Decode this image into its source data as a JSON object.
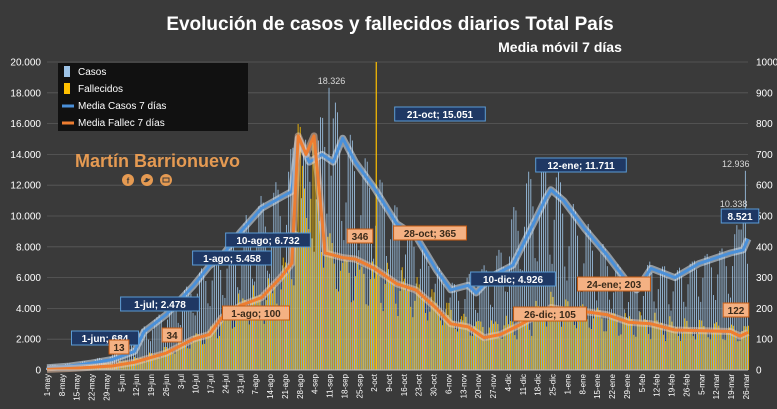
{
  "chart_data": {
    "type": "bar+line",
    "title": "Evolución  de casos  y fallecidos  diarios  Total  País",
    "subtitle": "Media  móvil  7 días",
    "author": "Martín Barrionuevo",
    "y_left": {
      "min": 0,
      "max": 20000,
      "ticks": [
        "0",
        "2.000",
        "4.000",
        "6.000",
        "8.000",
        "10.000",
        "12.000",
        "14.000",
        "16.000",
        "18.000",
        "20.000"
      ]
    },
    "y_right": {
      "min": 0,
      "max": 1000,
      "ticks": [
        "0",
        "100",
        "200",
        "300",
        "400",
        "500",
        "600",
        "700",
        "800",
        "900",
        "1000"
      ]
    },
    "x_start": "1-may",
    "x_end": "26-mar",
    "x_ticks": [
      "1-may",
      "8-may",
      "15-may",
      "22-may",
      "29-may",
      "5-jun",
      "12-jun",
      "19-jun",
      "26-jun",
      "3-jul",
      "10-jul",
      "17-jul",
      "24-jul",
      "31-jul",
      "7-ago",
      "14-ago",
      "21-ago",
      "28-ago",
      "4-sep",
      "11-sep",
      "18-sep",
      "25-sep",
      "2-oct",
      "9-oct",
      "16-oct",
      "23-oct",
      "30-oct",
      "6-nov",
      "13-nov",
      "20-nov",
      "27-nov",
      "4-dic",
      "11-dic",
      "18-dic",
      "25-dic",
      "1-ene",
      "8-ene",
      "15-ene",
      "22-ene",
      "29-ene",
      "5-feb",
      "12-feb",
      "19-feb",
      "26-feb",
      "5-mar",
      "12-mar",
      "19-mar",
      "26-mar"
    ],
    "legend": [
      {
        "label": "Casos",
        "color": "#9dc3e6",
        "kind": "bar"
      },
      {
        "label": "Fallecidos",
        "color": "#ffc000",
        "kind": "bar"
      },
      {
        "label": "Media Casos 7 días",
        "color": "#4a90d9",
        "kind": "line"
      },
      {
        "label": "Media Fallec 7 días",
        "color": "#ed7d31",
        "kind": "line"
      }
    ],
    "series": [
      {
        "name": "Media Casos 7 días",
        "axis": "left",
        "points": [
          [
            0,
            150
          ],
          [
            14,
            250
          ],
          [
            28,
            450
          ],
          [
            41,
            684
          ],
          [
            55,
            1200
          ],
          [
            61,
            2478
          ],
          [
            75,
            3600
          ],
          [
            92,
            5458
          ],
          [
            102,
            6732
          ],
          [
            110,
            7400
          ],
          [
            122,
            9000
          ],
          [
            135,
            10500
          ],
          [
            147,
            11200
          ],
          [
            154,
            11600
          ],
          [
            158,
            15051
          ],
          [
            165,
            13500
          ],
          [
            173,
            14000
          ],
          [
            180,
            13500
          ],
          [
            186,
            15051
          ],
          [
            194,
            13500
          ],
          [
            206,
            11800
          ],
          [
            220,
            9500
          ],
          [
            232,
            8700
          ],
          [
            245,
            6500
          ],
          [
            254,
            5200
          ],
          [
            265,
            5500
          ],
          [
            270,
            5000
          ],
          [
            280,
            6100
          ],
          [
            293,
            6800
          ],
          [
            306,
            9500
          ],
          [
            314,
            11200
          ],
          [
            317,
            11711
          ],
          [
            325,
            11000
          ],
          [
            338,
            9200
          ],
          [
            352,
            7500
          ],
          [
            366,
            5600
          ],
          [
            371,
            5200
          ],
          [
            380,
            6600
          ],
          [
            395,
            6000
          ],
          [
            410,
            6900
          ],
          [
            430,
            7600
          ],
          [
            438,
            7800
          ],
          [
            441,
            8521
          ]
        ]
      },
      {
        "name": "Media Fallec 7 días",
        "axis": "right",
        "points": [
          [
            0,
            2
          ],
          [
            14,
            5
          ],
          [
            28,
            9
          ],
          [
            41,
            13
          ],
          [
            55,
            25
          ],
          [
            61,
            34
          ],
          [
            75,
            55
          ],
          [
            92,
            100
          ],
          [
            102,
            115
          ],
          [
            110,
            170
          ],
          [
            122,
            210
          ],
          [
            135,
            235
          ],
          [
            147,
            300
          ],
          [
            154,
            346
          ],
          [
            158,
            760
          ],
          [
            163,
            700
          ],
          [
            168,
            760
          ],
          [
            175,
            380
          ],
          [
            186,
            365
          ],
          [
            194,
            360
          ],
          [
            206,
            330
          ],
          [
            220,
            280
          ],
          [
            232,
            260
          ],
          [
            245,
            200
          ],
          [
            254,
            150
          ],
          [
            265,
            140
          ],
          [
            275,
            105
          ],
          [
            285,
            115
          ],
          [
            295,
            140
          ],
          [
            304,
            165
          ],
          [
            313,
            180
          ],
          [
            317,
            203
          ],
          [
            325,
            195
          ],
          [
            338,
            190
          ],
          [
            352,
            180
          ],
          [
            366,
            155
          ],
          [
            380,
            150
          ],
          [
            395,
            130
          ],
          [
            410,
            128
          ],
          [
            430,
            125
          ],
          [
            436,
            110
          ],
          [
            441,
            122
          ]
        ]
      }
    ],
    "bar_envelopes": [
      {
        "name": "Casos",
        "axis": "left",
        "points": [
          [
            0,
            300
          ],
          [
            20,
            500
          ],
          [
            41,
            1000
          ],
          [
            61,
            3000
          ],
          [
            80,
            4800
          ],
          [
            102,
            7500
          ],
          [
            120,
            9500
          ],
          [
            140,
            12000
          ],
          [
            150,
            12500
          ],
          [
            156,
            15500
          ],
          [
            158,
            16200
          ],
          [
            165,
            14500
          ],
          [
            176,
            17500
          ],
          [
            179,
            18326
          ],
          [
            186,
            16500
          ],
          [
            195,
            15000
          ],
          [
            210,
            13000
          ],
          [
            225,
            10500
          ],
          [
            245,
            7500
          ],
          [
            260,
            5500
          ],
          [
            265,
            6500
          ],
          [
            275,
            7000
          ],
          [
            285,
            8000
          ],
          [
            300,
            12500
          ],
          [
            310,
            13800
          ],
          [
            320,
            13500
          ],
          [
            330,
            11000
          ],
          [
            345,
            9000
          ],
          [
            360,
            7000
          ],
          [
            370,
            6000
          ],
          [
            380,
            7500
          ],
          [
            395,
            7000
          ],
          [
            410,
            8000
          ],
          [
            430,
            8500
          ],
          [
            436,
            10338
          ],
          [
            438,
            12936
          ],
          [
            441,
            9200
          ]
        ]
      },
      {
        "name": "Fallecidos",
        "axis": "right",
        "points": [
          [
            0,
            5
          ],
          [
            20,
            15
          ],
          [
            41,
            25
          ],
          [
            61,
            50
          ],
          [
            80,
            90
          ],
          [
            102,
            150
          ],
          [
            120,
            260
          ],
          [
            140,
            300
          ],
          [
            150,
            380
          ],
          [
            155,
            480
          ],
          [
            158,
            860
          ],
          [
            162,
            760
          ],
          [
            168,
            800
          ],
          [
            175,
            500
          ],
          [
            186,
            400
          ],
          [
            195,
            380
          ],
          [
            210,
            360
          ],
          [
            225,
            330
          ],
          [
            245,
            260
          ],
          [
            260,
            200
          ],
          [
            275,
            170
          ],
          [
            285,
            180
          ],
          [
            300,
            190
          ],
          [
            315,
            260
          ],
          [
            320,
            250
          ],
          [
            330,
            230
          ],
          [
            345,
            220
          ],
          [
            360,
            200
          ],
          [
            380,
            190
          ],
          [
            395,
            170
          ],
          [
            410,
            170
          ],
          [
            430,
            160
          ],
          [
            441,
            160
          ]
        ]
      }
    ],
    "labels": [
      {
        "text": "1-jun; 684",
        "series": "Media Casos 7 días",
        "day": 31,
        "value": 684
      },
      {
        "text": "1-jul; 2.478",
        "series": "Media Casos 7 días",
        "day": 61,
        "value": 2478
      },
      {
        "text": "1-ago; 5.458",
        "series": "Media Casos 7 días",
        "day": 92,
        "value": 5458
      },
      {
        "text": "10-ago; 6.732",
        "series": "Media Casos 7 días",
        "day": 101,
        "value": 6732
      },
      {
        "text": "21-oct; 15.051",
        "series": "Media Casos 7 días",
        "day": 173,
        "value": 15051
      },
      {
        "text": "10-dic; 4.926",
        "series": "Media Casos 7 días",
        "day": 223,
        "value": 4926
      },
      {
        "text": "12-ene; 11.711",
        "series": "Media Casos 7 días",
        "day": 256,
        "value": 11711
      },
      {
        "text": "8.521",
        "series": "Media Casos 7 días",
        "day": 329,
        "value": 8521
      },
      {
        "text": "13",
        "series": "Media Fallec 7 días",
        "day": 31,
        "value": 13
      },
      {
        "text": "34",
        "series": "Media Fallec 7 días",
        "day": 61,
        "value": 34
      },
      {
        "text": "1-ago; 100",
        "series": "Media Fallec 7 días",
        "day": 92,
        "value": 100
      },
      {
        "text": "346",
        "series": "Media Fallec 7 días",
        "day": 153,
        "value": 346
      },
      {
        "text": "28-oct; 365",
        "series": "Media Fallec 7 días",
        "day": 180,
        "value": 365
      },
      {
        "text": "26-dic; 105",
        "series": "Media Fallec 7 días",
        "day": 239,
        "value": 105
      },
      {
        "text": "24-ene; 203",
        "series": "Media Fallec 7 días",
        "day": 268,
        "value": 203
      },
      {
        "text": "122",
        "series": "Media Fallec 7 días",
        "day": 329,
        "value": 122
      }
    ],
    "peak_labels": [
      "18.326",
      "12.936",
      "10.338"
    ]
  }
}
